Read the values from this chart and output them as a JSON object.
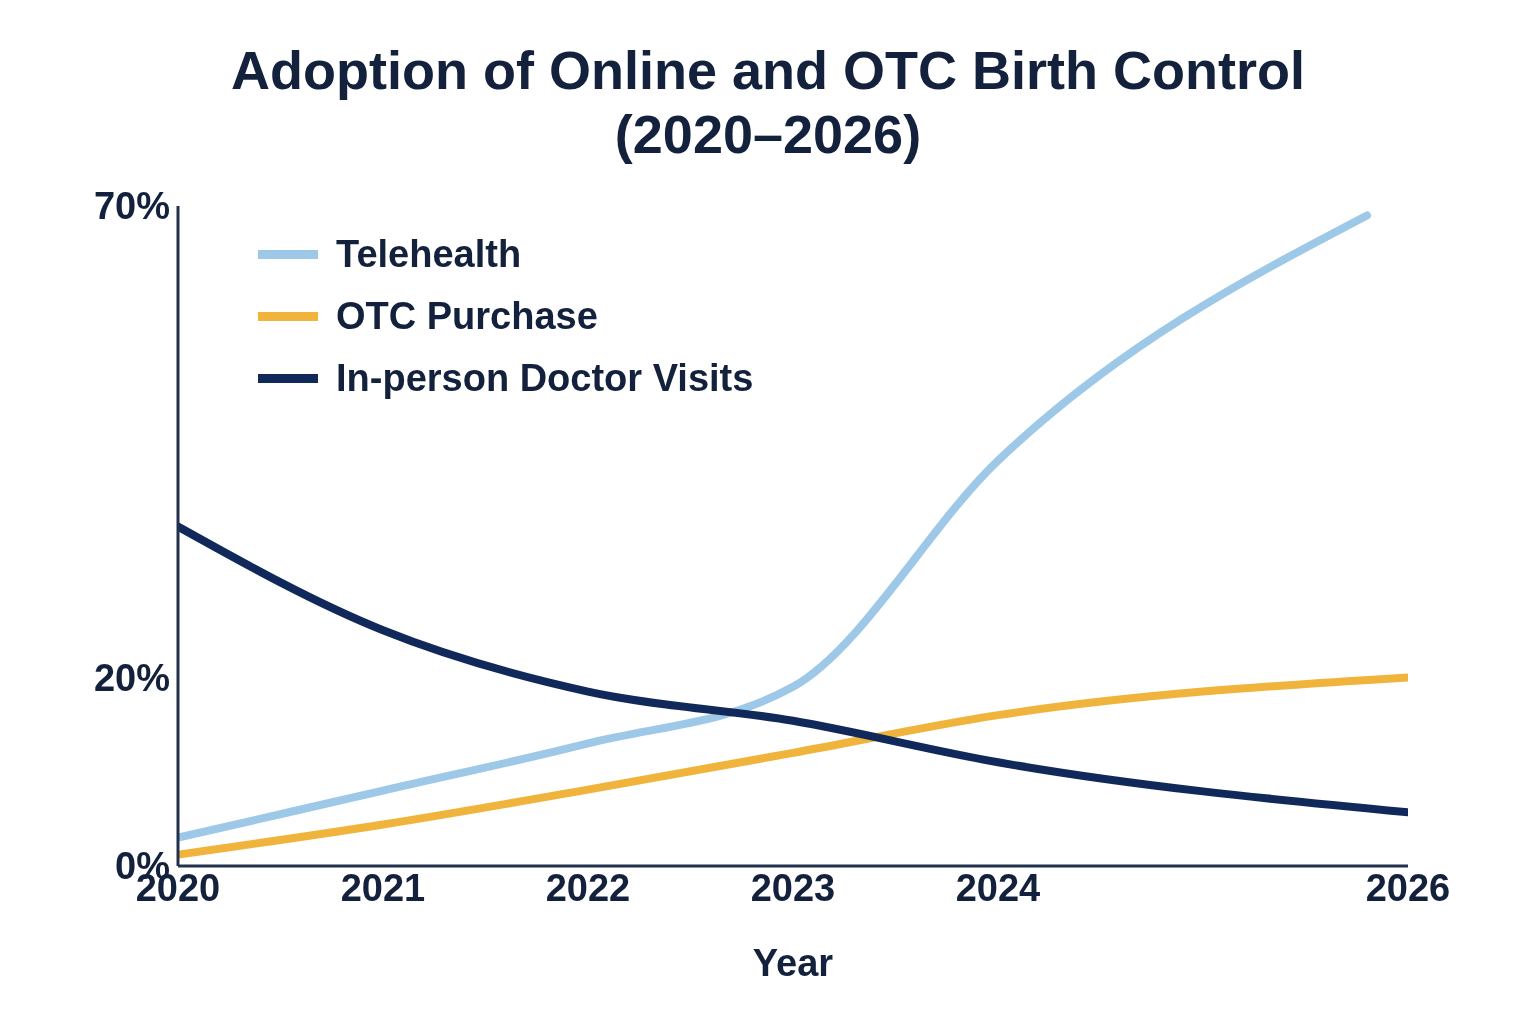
{
  "chart_data": {
    "type": "line",
    "title": "Adoption of Online and OTC Birth Control (2020–2026)",
    "xlabel": "Year",
    "x": [
      2020,
      2021,
      2022,
      2023,
      2024,
      2026
    ],
    "series": [
      {
        "name": "Telehealth",
        "color": "#9dc8e8",
        "x": [
          2020,
          2021,
          2022,
          2023,
          2024,
          2025.8
        ],
        "values": [
          3,
          8,
          13,
          19,
          43,
          69
        ]
      },
      {
        "name": "OTC Purchase",
        "color": "#f0b43c",
        "values": [
          1.2,
          4.4,
          8.1,
          12,
          16,
          20
        ]
      },
      {
        "name": "In-person Doctor Visits",
        "color": "#10295a",
        "values": [
          36,
          25,
          18.5,
          15.4,
          11,
          5.7
        ]
      }
    ],
    "xlim": [
      2020,
      2026
    ],
    "xticks": [
      2020,
      2021,
      2022,
      2023,
      2024,
      2026
    ],
    "ylim": [
      0,
      70
    ],
    "yticks": [
      {
        "value": 0,
        "label": "0%"
      },
      {
        "value": 20,
        "label": "20%"
      },
      {
        "value": 70,
        "label": "70%"
      }
    ],
    "grid": false,
    "legend": "top left",
    "marker": "none",
    "line_style": "solid"
  }
}
